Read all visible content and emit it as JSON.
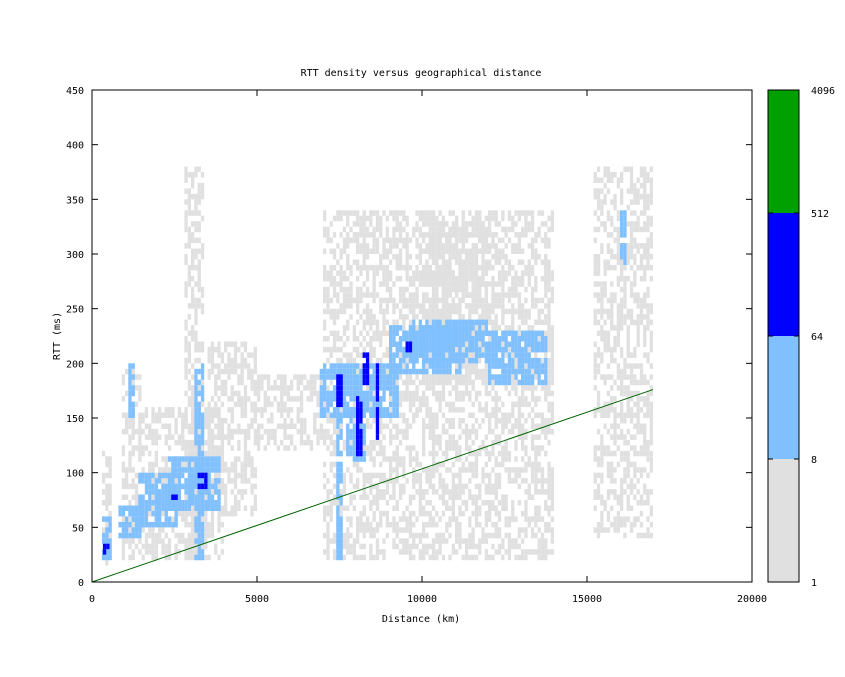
{
  "chart_data": {
    "type": "heatmap",
    "title": "RTT density versus geographical distance",
    "xlabel": "Distance (km)",
    "ylabel": "RTT (ms)",
    "xlim": [
      0,
      20000
    ],
    "ylim": [
      0,
      450
    ],
    "xticks": [
      0,
      5000,
      10000,
      15000,
      20000
    ],
    "yticks": [
      0,
      50,
      100,
      150,
      200,
      250,
      300,
      350,
      400,
      450
    ],
    "bin_width_km": 100,
    "bin_height_ms": 5,
    "colorbar": {
      "scale": "log",
      "ticks": [
        "1",
        "8",
        "64",
        "512",
        "4096"
      ],
      "bands": [
        {
          "from": 1,
          "to": 8,
          "color": "#e0e0e0"
        },
        {
          "from": 8,
          "to": 64,
          "color": "#80c0ff"
        },
        {
          "from": 64,
          "to": 512,
          "color": "#0000ff"
        },
        {
          "from": 512,
          "to": 4096,
          "color": "#00a000"
        }
      ]
    },
    "reference_line": {
      "color": "#006400",
      "points": [
        [
          0,
          0
        ],
        [
          17000,
          176
        ]
      ]
    },
    "density_regions": [
      {
        "x": [
          300,
          600
        ],
        "y": [
          15,
          120
        ],
        "level": "low"
      },
      {
        "x": [
          900,
          1500
        ],
        "y": [
          20,
          200
        ],
        "level": "low"
      },
      {
        "x": [
          1500,
          4000
        ],
        "y": [
          20,
          160
        ],
        "level": "low"
      },
      {
        "x": [
          2800,
          3400
        ],
        "y": [
          20,
          380
        ],
        "level": "low"
      },
      {
        "x": [
          3500,
          5000
        ],
        "y": [
          60,
          220
        ],
        "level": "low"
      },
      {
        "x": [
          5000,
          7000
        ],
        "y": [
          120,
          190
        ],
        "level": "low"
      },
      {
        "x": [
          7000,
          14000
        ],
        "y": [
          20,
          340
        ],
        "level": "low"
      },
      {
        "x": [
          10000,
          12000
        ],
        "y": [
          180,
          330
        ],
        "level": "low"
      },
      {
        "x": [
          15200,
          17000
        ],
        "y": [
          40,
          380
        ],
        "level": "low"
      },
      {
        "x": [
          300,
          600
        ],
        "y": [
          20,
          60
        ],
        "level": "medium"
      },
      {
        "x": [
          800,
          1500
        ],
        "y": [
          40,
          70
        ],
        "level": "medium"
      },
      {
        "x": [
          1100,
          1300
        ],
        "y": [
          150,
          200
        ],
        "level": "medium"
      },
      {
        "x": [
          1400,
          2600
        ],
        "y": [
          50,
          100
        ],
        "level": "medium"
      },
      {
        "x": [
          2300,
          3900
        ],
        "y": [
          65,
          115
        ],
        "level": "medium"
      },
      {
        "x": [
          3100,
          3400
        ],
        "y": [
          20,
          200
        ],
        "level": "medium"
      },
      {
        "x": [
          6900,
          9300
        ],
        "y": [
          150,
          200
        ],
        "level": "medium"
      },
      {
        "x": [
          7400,
          7600
        ],
        "y": [
          20,
          150
        ],
        "level": "medium"
      },
      {
        "x": [
          7700,
          8300
        ],
        "y": [
          110,
          160
        ],
        "level": "medium"
      },
      {
        "x": [
          9000,
          11200
        ],
        "y": [
          190,
          235
        ],
        "level": "medium"
      },
      {
        "x": [
          9700,
          12000
        ],
        "y": [
          200,
          240
        ],
        "level": "medium"
      },
      {
        "x": [
          12000,
          13800
        ],
        "y": [
          180,
          230
        ],
        "level": "medium"
      },
      {
        "x": [
          16000,
          16200
        ],
        "y": [
          290,
          340
        ],
        "level": "medium"
      },
      {
        "x": [
          330,
          450
        ],
        "y": [
          25,
          32
        ],
        "level": "high"
      },
      {
        "x": [
          3200,
          3500
        ],
        "y": [
          85,
          100
        ],
        "level": "high"
      },
      {
        "x": [
          2400,
          2600
        ],
        "y": [
          75,
          80
        ],
        "level": "high"
      },
      {
        "x": [
          7400,
          7600
        ],
        "y": [
          160,
          190
        ],
        "level": "high"
      },
      {
        "x": [
          8000,
          8150
        ],
        "y": [
          115,
          170
        ],
        "level": "high"
      },
      {
        "x": [
          8200,
          8400
        ],
        "y": [
          180,
          210
        ],
        "level": "high"
      },
      {
        "x": [
          8600,
          8700
        ],
        "y": [
          130,
          200
        ],
        "level": "high"
      },
      {
        "x": [
          9500,
          9700
        ],
        "y": [
          210,
          220
        ],
        "level": "high"
      }
    ]
  }
}
